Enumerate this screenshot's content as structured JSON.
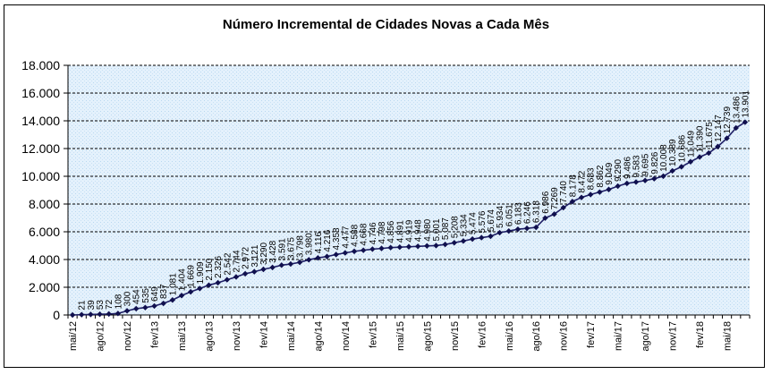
{
  "chart_data": {
    "type": "line",
    "title": "Número Incremental de Cidades Novas a Cada Mês",
    "xlabel": "",
    "ylabel": "",
    "ylim": [
      0,
      18000
    ],
    "y_ticks": [
      "0",
      "2.000",
      "4.000",
      "6.000",
      "8.000",
      "10.000",
      "12.000",
      "14.000",
      "16.000",
      "18.000"
    ],
    "x_tick_labels": [
      "mai/12",
      "ago/12",
      "nov/12",
      "fev/13",
      "mai/13",
      "ago/13",
      "nov/13",
      "fev/14",
      "mai/14",
      "ago/14",
      "nov/14",
      "fev/15",
      "mai/15",
      "ago/15",
      "nov/15",
      "fev/16",
      "mai/16",
      "ago/16",
      "nov/16",
      "fev/17",
      "mai/17",
      "ago/17",
      "nov/17",
      "fev/18",
      "mai/18"
    ],
    "grid": true,
    "legend": "none",
    "colors": {
      "line": "#1f1f66",
      "marker": "#10104e",
      "plot_bg": "#e2f0fb",
      "grid": "#000000"
    },
    "values": [
      0,
      21,
      39,
      53,
      72,
      108,
      300,
      454,
      535,
      649,
      837,
      1081,
      1404,
      1669,
      1909,
      2150,
      2326,
      2542,
      2744,
      2972,
      3121,
      3290,
      3428,
      3591,
      3675,
      3798,
      3980,
      4116,
      4216,
      4358,
      4477,
      4588,
      4668,
      4746,
      4798,
      4856,
      4891,
      4919,
      4948,
      4980,
      5001,
      5087,
      5208,
      5334,
      5474,
      5576,
      5674,
      5934,
      6051,
      6183,
      6246,
      6318,
      6986,
      7269,
      7740,
      8178,
      8472,
      8683,
      8862,
      9049,
      9290,
      9486,
      9583,
      9695,
      9826,
      10008,
      10389,
      10686,
      11049,
      11390,
      11675,
      12147,
      12739,
      13486,
      13901
    ],
    "data_labels": [
      "",
      "21",
      "39",
      "53",
      "72",
      "108",
      "300",
      "454",
      "535",
      "649",
      "837",
      "1.081",
      "1.404",
      "1.669",
      "1.909",
      "2.150",
      "2.326",
      "2.542",
      "2.744",
      "2.972",
      "3.121",
      "3.290",
      "3.428",
      "3.591",
      "3.675",
      "3.798",
      "3.980",
      "4.116",
      "4.216",
      "4.358",
      "4.477",
      "4.588",
      "4.668",
      "4.746",
      "4.798",
      "4.856",
      "4.891",
      "4.919",
      "4.948",
      "4.980",
      "5.001",
      "5.087",
      "5.208",
      "5.334",
      "5.474",
      "5.576",
      "5.674",
      "5.934",
      "6.051",
      "6.183",
      "6.246",
      "6.318",
      "6.986",
      "7.269",
      "7.740",
      "8.178",
      "8.472",
      "8.683",
      "8.862",
      "9.049",
      "9.290",
      "9.486",
      "9.583",
      "9.695",
      "9.826",
      "10.008",
      "10.389",
      "10.686",
      "11.049",
      "11.390",
      "11.675",
      "12.147",
      "12.739",
      "13.486",
      "13.901"
    ]
  }
}
